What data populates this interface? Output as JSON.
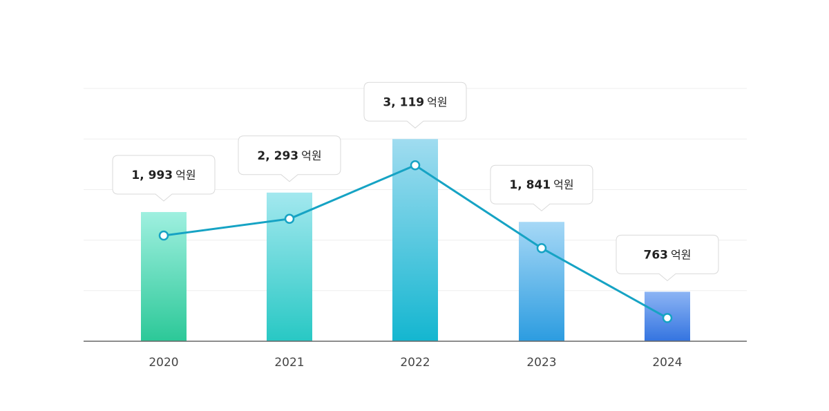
{
  "chart_data": {
    "type": "bar",
    "categories": [
      "2020",
      "2021",
      "2022",
      "2023",
      "2024"
    ],
    "values": [
      1993,
      2293,
      3119,
      1841,
      763
    ],
    "value_labels": [
      "1, 993",
      "2, 293",
      "3, 119",
      "1, 841",
      "763"
    ],
    "unit": "억원",
    "title": "",
    "xlabel": "",
    "ylabel": "",
    "ylim": [
      0,
      3900
    ],
    "grid": true,
    "legend": "none",
    "overlay": "line",
    "colors": {
      "bar_gradients": [
        [
          "#9ff0e0",
          "#2cc898"
        ],
        [
          "#a3e8ef",
          "#28c8c4"
        ],
        [
          "#a0dcf0",
          "#14b6d0"
        ],
        [
          "#a6d8f6",
          "#2c9ce0"
        ],
        [
          "#8cb4f4",
          "#3474e0"
        ]
      ],
      "line": "#16a3c4",
      "marker_fill": "#ffffff",
      "grid": "#eeeeee",
      "axis": "#666666"
    }
  }
}
